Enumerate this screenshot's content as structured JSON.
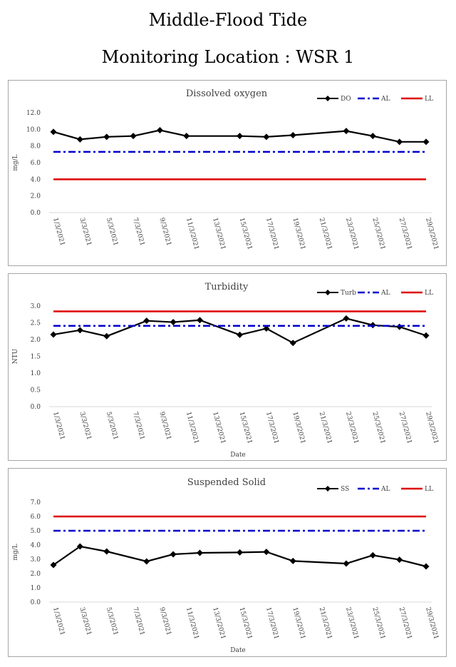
{
  "page": {
    "title_line1": "Middle-Flood Tide",
    "title_line2": "Monitoring Location : WSR 1"
  },
  "colors": {
    "data": "#000000",
    "al": "#0000cc",
    "ll": "#dd0000",
    "axis": "#d9d9d9"
  },
  "chart_data": [
    {
      "type": "line",
      "title": "Dissolved oxygen",
      "xlabel": "",
      "ylabel": "mg/L",
      "ylim": [
        0,
        12
      ],
      "yticks": [
        "0.0",
        "2.0",
        "4.0",
        "6.0",
        "8.0",
        "10.0",
        "12.0"
      ],
      "x_range": [
        "1/3/2021",
        "29/3/2021"
      ],
      "xticks": [
        "1/3/2021",
        "3/3/2021",
        "5/3/2021",
        "7/3/2021",
        "9/3/2021",
        "11/3/2021",
        "13/3/2021",
        "15/3/2021",
        "17/3/2021",
        "19/3/2021",
        "21/3/2021",
        "23/3/2021",
        "25/3/2021",
        "27/3/2021",
        "29/3/2021"
      ],
      "legend": [
        "DO",
        "AL",
        "LL"
      ],
      "legend_position": "top-right",
      "series": [
        {
          "name": "DO",
          "style": "solid-marker",
          "x": [
            "1/3/2021",
            "3/3/2021",
            "5/3/2021",
            "7/3/2021",
            "9/3/2021",
            "11/3/2021",
            "15/3/2021",
            "17/3/2021",
            "19/3/2021",
            "23/3/2021",
            "25/3/2021",
            "27/3/2021",
            "29/3/2021"
          ],
          "y": [
            9.7,
            8.8,
            9.1,
            9.2,
            9.9,
            9.2,
            9.2,
            9.1,
            9.3,
            9.8,
            9.2,
            8.5,
            8.5
          ]
        },
        {
          "name": "AL",
          "style": "dashdot",
          "x": [
            "1/3/2021",
            "29/3/2021"
          ],
          "y": [
            7.3,
            7.3
          ]
        },
        {
          "name": "LL",
          "style": "solid",
          "x": [
            "1/3/2021",
            "29/3/2021"
          ],
          "y": [
            4.0,
            4.0
          ]
        }
      ]
    },
    {
      "type": "line",
      "title": "Turbidity",
      "xlabel": "Date",
      "ylabel": "NTU",
      "ylim": [
        0,
        3
      ],
      "yticks": [
        "0.0",
        "0.5",
        "1.0",
        "1.5",
        "2.0",
        "2.5",
        "3.0"
      ],
      "x_range": [
        "1/3/2021",
        "29/3/2021"
      ],
      "xticks": [
        "1/3/2021",
        "3/3/2021",
        "5/3/2021",
        "7/3/2021",
        "9/3/2021",
        "11/3/2021",
        "13/3/2021",
        "15/3/2021",
        "17/3/2021",
        "19/3/2021",
        "21/3/2021",
        "23/3/2021",
        "25/3/2021",
        "27/3/2021",
        "29/3/2021"
      ],
      "legend": [
        "Turb",
        "AL",
        "LL"
      ],
      "legend_position": "top-right",
      "series": [
        {
          "name": "Turb",
          "style": "solid-marker",
          "x": [
            "1/3/2021",
            "3/3/2021",
            "5/3/2021",
            "8/3/2021",
            "10/3/2021",
            "12/3/2021",
            "15/3/2021",
            "17/3/2021",
            "19/3/2021",
            "23/3/2021",
            "25/3/2021",
            "27/3/2021",
            "29/3/2021"
          ],
          "y": [
            2.15,
            2.28,
            2.1,
            2.56,
            2.52,
            2.58,
            2.14,
            2.33,
            1.9,
            2.63,
            2.43,
            2.38,
            2.12
          ]
        },
        {
          "name": "AL",
          "style": "dashdot",
          "x": [
            "1/3/2021",
            "29/3/2021"
          ],
          "y": [
            2.41,
            2.41
          ]
        },
        {
          "name": "LL",
          "style": "solid",
          "x": [
            "1/3/2021",
            "29/3/2021"
          ],
          "y": [
            2.84,
            2.84
          ]
        }
      ]
    },
    {
      "type": "line",
      "title": "Suspended Solid",
      "xlabel": "Date",
      "ylabel": "mg/L",
      "ylim": [
        0,
        7
      ],
      "yticks": [
        "0.0",
        "1.0",
        "2.0",
        "3.0",
        "4.0",
        "5.0",
        "6.0",
        "7.0"
      ],
      "x_range": [
        "1/3/2021",
        "29/3/2021"
      ],
      "xticks": [
        "1/3/2021",
        "3/3/2021",
        "5/3/2021",
        "7/3/2021",
        "9/3/2021",
        "11/3/2021",
        "13/3/2021",
        "15/3/2021",
        "17/3/2021",
        "19/3/2021",
        "21/3/2021",
        "23/3/2021",
        "25/3/2021",
        "27/3/2021",
        "29/3/2021"
      ],
      "legend": [
        "SS",
        "AL",
        "LL"
      ],
      "legend_position": "top-right",
      "series": [
        {
          "name": "SS",
          "style": "solid-marker",
          "x": [
            "1/3/2021",
            "3/3/2021",
            "5/3/2021",
            "8/3/2021",
            "10/3/2021",
            "12/3/2021",
            "15/3/2021",
            "17/3/2021",
            "19/3/2021",
            "23/3/2021",
            "25/3/2021",
            "27/3/2021",
            "29/3/2021"
          ],
          "y": [
            2.6,
            3.9,
            3.55,
            2.85,
            3.35,
            3.45,
            3.48,
            3.52,
            2.88,
            2.7,
            3.28,
            2.97,
            2.5
          ]
        },
        {
          "name": "AL",
          "style": "dashdot",
          "x": [
            "1/3/2021",
            "29/3/2021"
          ],
          "y": [
            5.0,
            5.0
          ]
        },
        {
          "name": "LL",
          "style": "solid",
          "x": [
            "1/3/2021",
            "29/3/2021"
          ],
          "y": [
            6.0,
            6.0
          ]
        }
      ]
    }
  ]
}
